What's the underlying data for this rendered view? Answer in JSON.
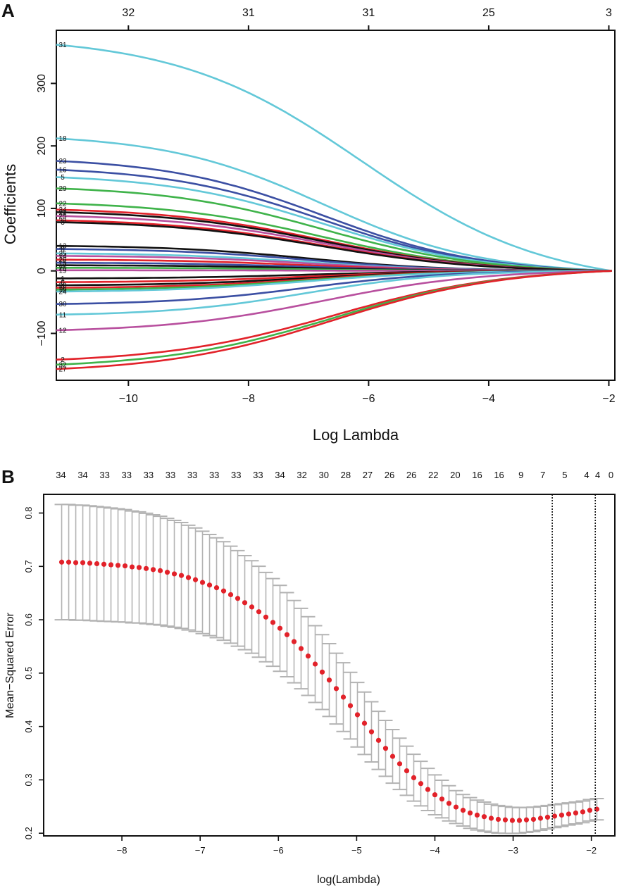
{
  "chart_data": [
    {
      "panel": "A",
      "type": "line",
      "title": "",
      "xlabel": "Log Lambda",
      "ylabel": "Coefficients",
      "xlim": [
        -11.2,
        -1.9
      ],
      "ylim": [
        -175,
        385
      ],
      "x_ticks": [
        "−10",
        "−8",
        "−6",
        "−4",
        "−2"
      ],
      "x_tick_values": [
        -10,
        -8,
        -6,
        -4,
        -2
      ],
      "y_ticks": [
        "−100",
        "0",
        "100",
        "200",
        "300"
      ],
      "y_tick_values": [
        -100,
        0,
        100,
        200,
        300
      ],
      "top_counts": [
        "32",
        "31",
        "31",
        "25",
        "3"
      ],
      "top_count_x": [
        -10,
        -8,
        -6,
        -4,
        -2
      ],
      "x_start": -11.2,
      "x_end": -1.95,
      "series": [
        {
          "name": "31",
          "start": 362,
          "color": "#63c8d8",
          "shape": "slow"
        },
        {
          "name": "18",
          "start": 212,
          "color": "#63c8d8",
          "shape": "mid"
        },
        {
          "name": "23",
          "start": 176,
          "color": "#3b4fa3",
          "shape": "mid"
        },
        {
          "name": "16",
          "start": 162,
          "color": "#3b4fa3",
          "shape": "mid"
        },
        {
          "name": "5",
          "start": 150,
          "color": "#63c8d8",
          "shape": "mid"
        },
        {
          "name": "29",
          "start": 132,
          "color": "#3fb34a",
          "shape": "mid"
        },
        {
          "name": "22",
          "start": 108,
          "color": "#3fb34a",
          "shape": "mid"
        },
        {
          "name": "34",
          "start": 98,
          "color": "#e2222a",
          "shape": "mid"
        },
        {
          "name": "21",
          "start": 94,
          "color": "#111111",
          "shape": "mid"
        },
        {
          "name": "25",
          "start": 88,
          "color": "#b84f9e",
          "shape": "mid"
        },
        {
          "name": "33",
          "start": 81,
          "color": "#e2222a",
          "shape": "mid"
        },
        {
          "name": "3",
          "start": 78,
          "color": "#111111",
          "shape": "mid"
        },
        {
          "name": "13",
          "start": 40,
          "color": "#111111",
          "shape": "fast"
        },
        {
          "name": "8",
          "start": 35,
          "color": "#3b4fa3",
          "shape": "fast"
        },
        {
          "name": "35",
          "start": 28,
          "color": "#63c8d8",
          "shape": "fast"
        },
        {
          "name": "14",
          "start": 24,
          "color": "#b84f9e",
          "shape": "fast"
        },
        {
          "name": "26",
          "start": 18,
          "color": "#e2222a",
          "shape": "fast"
        },
        {
          "name": "15",
          "start": 13,
          "color": "#3b4fa3",
          "shape": "fast"
        },
        {
          "name": "17",
          "start": 9,
          "color": "#111111",
          "shape": "fast"
        },
        {
          "name": "20",
          "start": 5,
          "color": "#3fb34a",
          "shape": "fast"
        },
        {
          "name": "19",
          "start": 1,
          "color": "#b84f9e",
          "shape": "fast"
        },
        {
          "name": "1",
          "start": -12,
          "color": "#111111",
          "shape": "fast"
        },
        {
          "name": "6",
          "start": -18,
          "color": "#e2222a",
          "shape": "fast"
        },
        {
          "name": "28",
          "start": -23,
          "color": "#111111",
          "shape": "fast"
        },
        {
          "name": "9",
          "start": -27,
          "color": "#e2222a",
          "shape": "fast"
        },
        {
          "name": "10",
          "start": -30,
          "color": "#3fb34a",
          "shape": "fast"
        },
        {
          "name": "24",
          "start": -33,
          "color": "#63c8d8",
          "shape": "fast"
        },
        {
          "name": "30",
          "start": -53,
          "color": "#3b4fa3",
          "shape": "fast"
        },
        {
          "name": "11",
          "start": -70,
          "color": "#63c8d8",
          "shape": "fast"
        },
        {
          "name": "12",
          "start": -95,
          "color": "#b84f9e",
          "shape": "mid"
        },
        {
          "name": "2",
          "start": -142,
          "color": "#e2222a",
          "shape": "neg"
        },
        {
          "name": "32",
          "start": -150,
          "color": "#3fb34a",
          "shape": "neg"
        },
        {
          "name": "27",
          "start": -157,
          "color": "#e2222a",
          "shape": "neg"
        }
      ]
    },
    {
      "panel": "B",
      "type": "scatter",
      "title": "",
      "xlabel": "log(Lambda)",
      "ylabel": "Mean−Squared Error",
      "xlim": [
        -9.0,
        -1.7
      ],
      "ylim": [
        0.195,
        0.835
      ],
      "x_ticks": [
        "−8",
        "−7",
        "−6",
        "−5",
        "−4",
        "−3",
        "−2"
      ],
      "x_tick_values": [
        -8,
        -7,
        -6,
        -5,
        -4,
        -3,
        -2
      ],
      "y_ticks": [
        "0.2",
        "0.3",
        "0.4",
        "0.5",
        "0.6",
        "0.7",
        "0.8"
      ],
      "y_tick_values": [
        0.2,
        0.3,
        0.4,
        0.5,
        0.6,
        0.7,
        0.8
      ],
      "top_counts": [
        "34",
        "34",
        "33",
        "33",
        "33",
        "33",
        "33",
        "33",
        "33",
        "33",
        "34",
        "32",
        "30",
        "28",
        "27",
        "26",
        "26",
        "22",
        "20",
        "16",
        "16",
        "9",
        "7",
        "5",
        "4",
        "4",
        "0"
      ],
      "top_count_x": [
        -8.78,
        -8.5,
        -8.22,
        -7.94,
        -7.66,
        -7.38,
        -7.1,
        -6.82,
        -6.54,
        -6.26,
        -5.98,
        -5.7,
        -5.42,
        -5.14,
        -4.86,
        -4.58,
        -4.3,
        -4.02,
        -3.74,
        -3.46,
        -3.18,
        -2.9,
        -2.62,
        -2.34,
        -2.06,
        -1.92,
        -1.75
      ],
      "x": [
        -8.77,
        -8.68,
        -8.59,
        -8.5,
        -8.41,
        -8.32,
        -8.23,
        -8.14,
        -8.05,
        -7.96,
        -7.87,
        -7.78,
        -7.69,
        -7.6,
        -7.51,
        -7.42,
        -7.33,
        -7.24,
        -7.15,
        -7.06,
        -6.97,
        -6.88,
        -6.79,
        -6.7,
        -6.61,
        -6.52,
        -6.43,
        -6.34,
        -6.25,
        -6.16,
        -6.07,
        -5.98,
        -5.89,
        -5.8,
        -5.71,
        -5.62,
        -5.53,
        -5.44,
        -5.35,
        -5.26,
        -5.17,
        -5.08,
        -4.99,
        -4.9,
        -4.81,
        -4.72,
        -4.63,
        -4.54,
        -4.45,
        -4.36,
        -4.27,
        -4.18,
        -4.09,
        -4.0,
        -3.91,
        -3.82,
        -3.73,
        -3.64,
        -3.55,
        -3.46,
        -3.37,
        -3.28,
        -3.19,
        -3.1,
        -3.01,
        -2.92,
        -2.83,
        -2.74,
        -2.65,
        -2.56,
        -2.47,
        -2.38,
        -2.29,
        -2.2,
        -2.11,
        -2.02,
        -1.93
      ],
      "mse": [
        0.708,
        0.708,
        0.707,
        0.707,
        0.706,
        0.705,
        0.704,
        0.703,
        0.702,
        0.701,
        0.699,
        0.698,
        0.696,
        0.694,
        0.692,
        0.689,
        0.686,
        0.683,
        0.679,
        0.675,
        0.67,
        0.665,
        0.66,
        0.654,
        0.647,
        0.64,
        0.632,
        0.624,
        0.615,
        0.605,
        0.595,
        0.584,
        0.572,
        0.559,
        0.546,
        0.532,
        0.517,
        0.502,
        0.487,
        0.471,
        0.455,
        0.439,
        0.422,
        0.406,
        0.39,
        0.374,
        0.359,
        0.344,
        0.33,
        0.317,
        0.304,
        0.293,
        0.282,
        0.272,
        0.264,
        0.256,
        0.249,
        0.243,
        0.238,
        0.234,
        0.231,
        0.228,
        0.226,
        0.225,
        0.224,
        0.224,
        0.225,
        0.226,
        0.228,
        0.23,
        0.232,
        0.234,
        0.236,
        0.238,
        0.24,
        0.243,
        0.245
      ],
      "vlines": [
        -2.5,
        -1.95
      ]
    }
  ],
  "panel_labels": {
    "a": "A",
    "b": "B"
  },
  "colors": {
    "error_bar": "#b3b3b3",
    "mse_point": "#e2222a",
    "axis": "#111111"
  }
}
